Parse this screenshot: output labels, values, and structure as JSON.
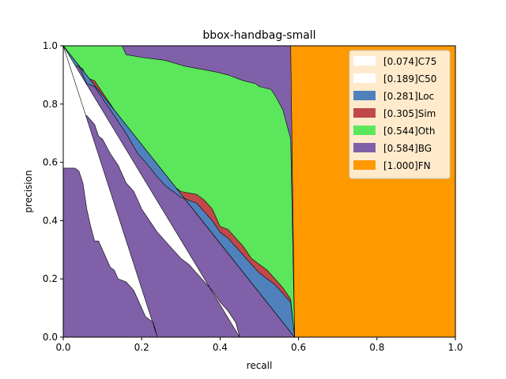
{
  "chart_data": {
    "type": "area",
    "title": "bbox-handbag-small",
    "xlabel": "recall",
    "ylabel": "precision",
    "xlim": [
      0,
      1
    ],
    "ylim": [
      0,
      1
    ],
    "xticks": [
      "0.0",
      "0.2",
      "0.4",
      "0.6",
      "0.8",
      "1.0"
    ],
    "yticks": [
      "0.0",
      "0.2",
      "0.4",
      "0.6",
      "0.8",
      "1.0"
    ],
    "grid": false,
    "legend_position": "top-right",
    "series": [
      {
        "name": "[1.000]FN",
        "color": "#ff9900",
        "points": [
          [
            0,
            1
          ],
          [
            1,
            1
          ],
          [
            1,
            0
          ],
          [
            0,
            0
          ]
        ]
      },
      {
        "name": "[0.584]BG",
        "color": "#8060a8",
        "points": [
          [
            0,
            1
          ],
          [
            0.58,
            1
          ],
          [
            0.59,
            0
          ],
          [
            0,
            0
          ]
        ]
      },
      {
        "name": "[0.544]Oth",
        "color": "#5ce65c",
        "points": [
          [
            0,
            1
          ],
          [
            0.15,
            1
          ],
          [
            0.16,
            0.97
          ],
          [
            0.2,
            0.96
          ],
          [
            0.26,
            0.95
          ],
          [
            0.31,
            0.93
          ],
          [
            0.35,
            0.92
          ],
          [
            0.39,
            0.91
          ],
          [
            0.42,
            0.9
          ],
          [
            0.44,
            0.89
          ],
          [
            0.46,
            0.88
          ],
          [
            0.49,
            0.87
          ],
          [
            0.5,
            0.86
          ],
          [
            0.53,
            0.85
          ],
          [
            0.54,
            0.83
          ],
          [
            0.56,
            0.78
          ],
          [
            0.57,
            0.73
          ],
          [
            0.58,
            0.68
          ],
          [
            0.59,
            0
          ]
        ]
      },
      {
        "name": "[0.305]Sim",
        "color": "#c04848",
        "points": [
          [
            0,
            1
          ],
          [
            0.0,
            0.93
          ],
          [
            0.04,
            0.93
          ],
          [
            0.05,
            0.92
          ],
          [
            0.06,
            0.89
          ],
          [
            0.08,
            0.88
          ],
          [
            0.1,
            0.84
          ],
          [
            0.12,
            0.8
          ],
          [
            0.14,
            0.76
          ],
          [
            0.16,
            0.72
          ],
          [
            0.19,
            0.66
          ],
          [
            0.21,
            0.63
          ],
          [
            0.24,
            0.57
          ],
          [
            0.26,
            0.54
          ],
          [
            0.3,
            0.5
          ],
          [
            0.34,
            0.49
          ],
          [
            0.36,
            0.47
          ],
          [
            0.38,
            0.44
          ],
          [
            0.4,
            0.38
          ],
          [
            0.42,
            0.37
          ],
          [
            0.44,
            0.34
          ],
          [
            0.46,
            0.31
          ],
          [
            0.48,
            0.27
          ],
          [
            0.5,
            0.25
          ],
          [
            0.52,
            0.23
          ],
          [
            0.54,
            0.2
          ],
          [
            0.56,
            0.17
          ],
          [
            0.58,
            0.13
          ],
          [
            0.59,
            0
          ]
        ]
      },
      {
        "name": "[0.281]Loc",
        "color": "#4f81bd",
        "points": [
          [
            0,
            1
          ],
          [
            0.0,
            0.93
          ],
          [
            0.04,
            0.93
          ],
          [
            0.05,
            0.9
          ],
          [
            0.06,
            0.87
          ],
          [
            0.08,
            0.86
          ],
          [
            0.1,
            0.82
          ],
          [
            0.12,
            0.78
          ],
          [
            0.14,
            0.74
          ],
          [
            0.16,
            0.7
          ],
          [
            0.19,
            0.63
          ],
          [
            0.21,
            0.6
          ],
          [
            0.24,
            0.55
          ],
          [
            0.26,
            0.52
          ],
          [
            0.3,
            0.48
          ],
          [
            0.34,
            0.46
          ],
          [
            0.36,
            0.43
          ],
          [
            0.38,
            0.4
          ],
          [
            0.4,
            0.36
          ],
          [
            0.42,
            0.34
          ],
          [
            0.44,
            0.31
          ],
          [
            0.46,
            0.28
          ],
          [
            0.48,
            0.25
          ],
          [
            0.5,
            0.22
          ],
          [
            0.52,
            0.2
          ],
          [
            0.54,
            0.18
          ],
          [
            0.56,
            0.15
          ],
          [
            0.58,
            0.12
          ],
          [
            0.59,
            0
          ]
        ]
      },
      {
        "name": "[0.189]C50",
        "color": "#ffffff",
        "points": [
          [
            0,
            1
          ],
          [
            0.0,
            0.8
          ],
          [
            0.03,
            0.8
          ],
          [
            0.04,
            0.77
          ],
          [
            0.06,
            0.76
          ],
          [
            0.08,
            0.73
          ],
          [
            0.09,
            0.69
          ],
          [
            0.1,
            0.68
          ],
          [
            0.12,
            0.63
          ],
          [
            0.14,
            0.59
          ],
          [
            0.16,
            0.53
          ],
          [
            0.18,
            0.5
          ],
          [
            0.2,
            0.44
          ],
          [
            0.22,
            0.4
          ],
          [
            0.24,
            0.36
          ],
          [
            0.26,
            0.33
          ],
          [
            0.28,
            0.3
          ],
          [
            0.3,
            0.27
          ],
          [
            0.32,
            0.25
          ],
          [
            0.34,
            0.22
          ],
          [
            0.36,
            0.19
          ],
          [
            0.38,
            0.16
          ],
          [
            0.4,
            0.12
          ],
          [
            0.42,
            0.09
          ],
          [
            0.44,
            0.05
          ],
          [
            0.45,
            0
          ]
        ]
      },
      {
        "name": "[0.074]C75",
        "color": "#ffffff",
        "points": [
          [
            0,
            1
          ],
          [
            0.0,
            0.58
          ],
          [
            0.03,
            0.58
          ],
          [
            0.04,
            0.57
          ],
          [
            0.05,
            0.53
          ],
          [
            0.06,
            0.44
          ],
          [
            0.07,
            0.38
          ],
          [
            0.08,
            0.33
          ],
          [
            0.09,
            0.33
          ],
          [
            0.1,
            0.3
          ],
          [
            0.11,
            0.27
          ],
          [
            0.12,
            0.24
          ],
          [
            0.13,
            0.23
          ],
          [
            0.14,
            0.2
          ],
          [
            0.16,
            0.19
          ],
          [
            0.18,
            0.16
          ],
          [
            0.19,
            0.13
          ],
          [
            0.2,
            0.1
          ],
          [
            0.21,
            0.07
          ],
          [
            0.23,
            0.05
          ],
          [
            0.24,
            0
          ]
        ]
      }
    ],
    "legend": [
      {
        "label": "[0.074]C75",
        "color": "#ffffff"
      },
      {
        "label": "[0.189]C50",
        "color": "#ffffff"
      },
      {
        "label": "[0.281]Loc",
        "color": "#4f81bd"
      },
      {
        "label": "[0.305]Sim",
        "color": "#c04848"
      },
      {
        "label": "[0.544]Oth",
        "color": "#5ce65c"
      },
      {
        "label": "[0.584]BG",
        "color": "#8060a8"
      },
      {
        "label": "[1.000]FN",
        "color": "#ff9900"
      }
    ]
  }
}
